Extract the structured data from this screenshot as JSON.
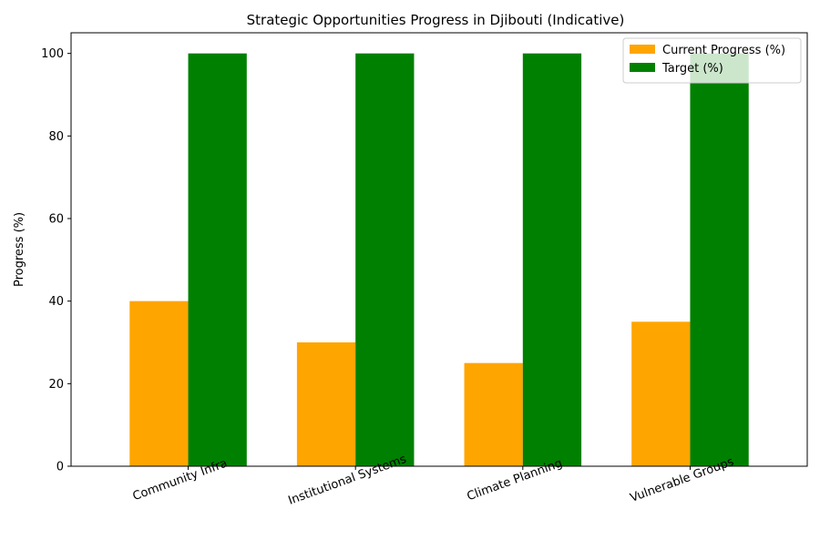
{
  "chart_data": {
    "type": "bar",
    "title": "Strategic Opportunities Progress in Djibouti (Indicative)",
    "xlabel": "",
    "ylabel": "Progress (%)",
    "categories": [
      "Community Infra",
      "Institutional Systems",
      "Climate Planning",
      "Vulnerable Groups"
    ],
    "series": [
      {
        "name": "Current Progress (%)",
        "values": [
          40,
          30,
          25,
          35
        ],
        "color": "#ffa500"
      },
      {
        "name": "Target (%)",
        "values": [
          100,
          100,
          100,
          100
        ],
        "color": "#008000"
      }
    ],
    "ylim": [
      0,
      105
    ],
    "yticks": [
      0,
      20,
      40,
      60,
      80,
      100
    ],
    "grid": false,
    "legend_position": "top-right",
    "xtick_rotation": "rotated"
  }
}
